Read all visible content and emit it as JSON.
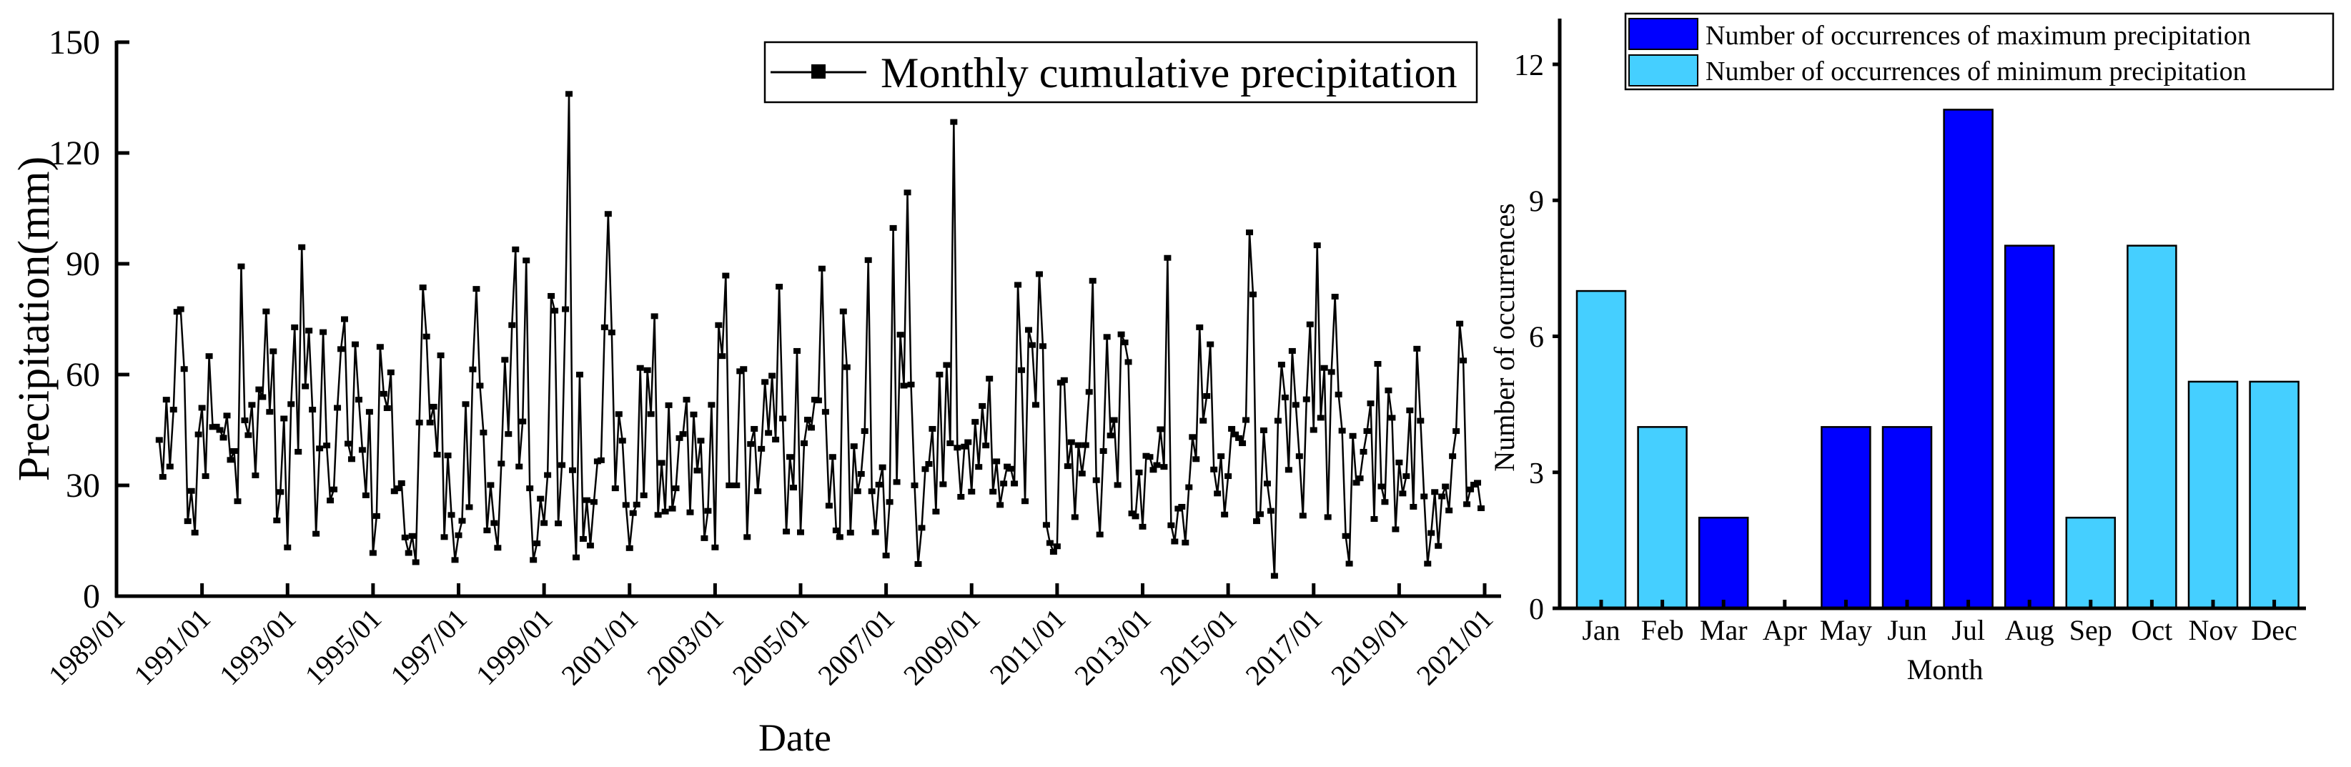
{
  "chart_data": [
    {
      "type": "line",
      "xlabel": "Date",
      "ylabel": "Precipitation(mm)",
      "ylim": [
        0,
        150
      ],
      "yticks": [
        "0",
        "30",
        "60",
        "90",
        "120",
        "150"
      ],
      "xlim": [
        "1989/01",
        "2021/01"
      ],
      "xticks": [
        "1989/01",
        "1991/01",
        "1993/01",
        "1995/01",
        "1997/01",
        "1999/01",
        "2001/01",
        "2003/01",
        "2005/01",
        "2007/01",
        "2009/01",
        "2011/01",
        "2013/01",
        "2015/01",
        "2017/01",
        "2019/01",
        "2021/01"
      ],
      "x_range": [
        "1990/01",
        "2020/12"
      ],
      "x_interval": "monthly",
      "legend_position": "top-right",
      "grid": false,
      "marker": "square",
      "line_color": "#000000",
      "series": [
        {
          "name": "Monthly cumulative precipitation",
          "values": [
            42.3,
            32.3,
            53.2,
            35.1,
            50.5,
            77,
            77.7,
            61.5,
            20.3,
            28.5,
            17.2,
            43.8,
            51,
            32.5,
            65,
            45.8,
            45.9,
            45,
            42.9,
            48.9,
            36.9,
            39.3,
            25.7,
            89.3,
            47.6,
            43.6,
            51.8,
            32.7,
            56,
            53.9,
            77.1,
            49.9,
            66.3,
            20.5,
            28.2,
            48.1,
            13.2,
            52,
            72.8,
            39.1,
            94.5,
            56.8,
            71.9,
            50.5,
            16.9,
            40,
            71.5,
            40.8,
            25.9,
            28.9,
            51,
            66.9,
            75,
            41.3,
            37.1,
            68.2,
            53.2,
            39.6,
            27.3,
            49.9,
            11.7,
            21.7,
            67.5,
            54.8,
            50.9,
            60.6,
            28.4,
            29.2,
            30.6,
            15.9,
            11.7,
            16.3,
            9.2,
            47,
            83.6,
            70.3,
            47,
            51.3,
            38.3,
            65.2,
            16,
            38.1,
            22,
            9.8,
            16.5,
            20.4,
            52,
            24.1,
            61.4,
            83.2,
            57,
            44.3,
            17.8,
            30.1,
            19.8,
            13.1,
            35.9,
            64,
            43.9,
            73.4,
            93.9,
            35.1,
            47.3,
            90.9,
            29.2,
            9.8,
            14.3,
            26.4,
            19.8,
            32.8,
            81.3,
            77.3,
            19.7,
            35.5,
            77.7,
            136,
            34.1,
            10.5,
            60,
            15.5,
            26,
            13.7,
            25.5,
            36.5,
            36.8,
            72.8,
            103.5,
            71.4,
            29.2,
            49.3,
            42.1,
            24.7,
            13,
            22.5,
            24.8,
            61.8,
            27.3,
            61.2,
            49.3,
            75.8,
            22,
            36.1,
            22.9,
            51.7,
            23.7,
            29.2,
            42.8,
            43.9,
            53.2,
            22.7,
            49.2,
            34,
            42.1,
            15.7,
            23.1,
            51.8,
            13.2,
            73.4,
            65,
            86.8,
            30,
            30,
            30,
            60.9,
            61.5,
            16,
            41.2,
            45.3,
            28.4,
            39.9,
            58,
            44.2,
            59.7,
            42.4,
            83.8,
            48.1,
            17.5,
            37.7,
            29.4,
            66.4,
            17.3,
            41.4,
            47.8,
            45.6,
            53.2,
            53,
            88.7,
            49.9,
            24.5,
            37.7,
            17.8,
            16,
            77.1,
            62,
            17.2,
            40.6,
            28.4,
            33.1,
            44.7,
            91,
            28.4,
            17.3,
            30.2,
            34.9,
            11,
            25.5,
            99.7,
            30.9,
            70.8,
            57,
            109.3,
            57.3,
            30,
            8.7,
            18.5,
            34.4,
            35.8,
            45.3,
            22.9,
            60,
            30.3,
            62.6,
            41.4,
            128.4,
            40.2,
            26.9,
            40.5,
            41.7,
            28.3,
            47.2,
            35,
            51.5,
            40.8,
            58.9,
            28.3,
            36.5,
            24.7,
            30.5,
            35.1,
            34.5,
            30.5,
            84.3,
            61.2,
            25.7,
            72.1,
            68,
            51.8,
            87.2,
            67.7,
            19.3,
            14.4,
            12,
            13.5,
            57.8,
            58.5,
            35.2,
            41.7,
            21.4,
            40.9,
            33.2,
            40.9,
            55.3,
            85.4,
            31.4,
            16.7,
            39.3,
            70.2,
            43.5,
            47.7,
            30.1,
            70.9,
            68.7,
            63.4,
            22.4,
            21.6,
            33.5,
            18.8,
            38,
            37.7,
            34.2,
            35.5,
            45.2,
            35,
            91.6,
            19.2,
            14.8,
            23.7,
            24.2,
            14.5,
            29.5,
            43.1,
            37.1,
            72.8,
            47.5,
            54.2,
            68.2,
            34.3,
            27.8,
            37.9,
            22.1,
            32.5,
            45.3,
            43.8,
            42.8,
            41.4,
            47.7,
            98.5,
            81.7,
            20.3,
            22.2,
            44.9,
            30.5,
            23.1,
            5.5,
            47.5,
            62.7,
            53.8,
            34.2,
            66.4,
            51.8,
            37.9,
            21.8,
            53.3,
            73.6,
            45,
            95,
            48.3,
            61.8,
            21.4,
            60.7,
            81.1,
            54.6,
            44.8,
            16.3,
            8.8,
            43.4,
            30.7,
            31.9,
            39.1,
            44.7,
            52.2,
            20.9,
            62.9,
            29.7,
            25.5,
            55.7,
            48.3,
            18.1,
            36.2,
            27.8,
            32.5,
            50.3,
            24.2,
            67,
            47.5,
            27,
            8.8,
            17.1,
            28.2,
            13.6,
            27,
            29.7,
            23.2,
            37.9,
            44.7,
            73.8,
            63.8,
            24.9,
            28.9,
            30.2,
            30.7,
            23.8
          ]
        }
      ]
    },
    {
      "type": "bar",
      "xlabel": "Month",
      "ylabel": "Number of occurrences",
      "ylim": [
        0,
        13
      ],
      "yticks": [
        "0",
        "3",
        "6",
        "9",
        "12"
      ],
      "categories": [
        "Jan",
        "Feb",
        "Mar",
        "Apr",
        "May",
        "Jun",
        "Jul",
        "Aug",
        "Sep",
        "Oct",
        "Nov",
        "Dec"
      ],
      "legend_position": "top-right",
      "grid": false,
      "series": [
        {
          "name": "Number of occurrences of maximum precipitation",
          "color": "#0000FF",
          "values": [
            0,
            0,
            2,
            0,
            4,
            4,
            11,
            8,
            0,
            0,
            0,
            0
          ]
        },
        {
          "name": "Number of occurrences of minimum precipitation",
          "color": "#45CFFF",
          "values": [
            7,
            4,
            0,
            0,
            0,
            0,
            0,
            0,
            2,
            8,
            5,
            5
          ]
        }
      ]
    }
  ]
}
